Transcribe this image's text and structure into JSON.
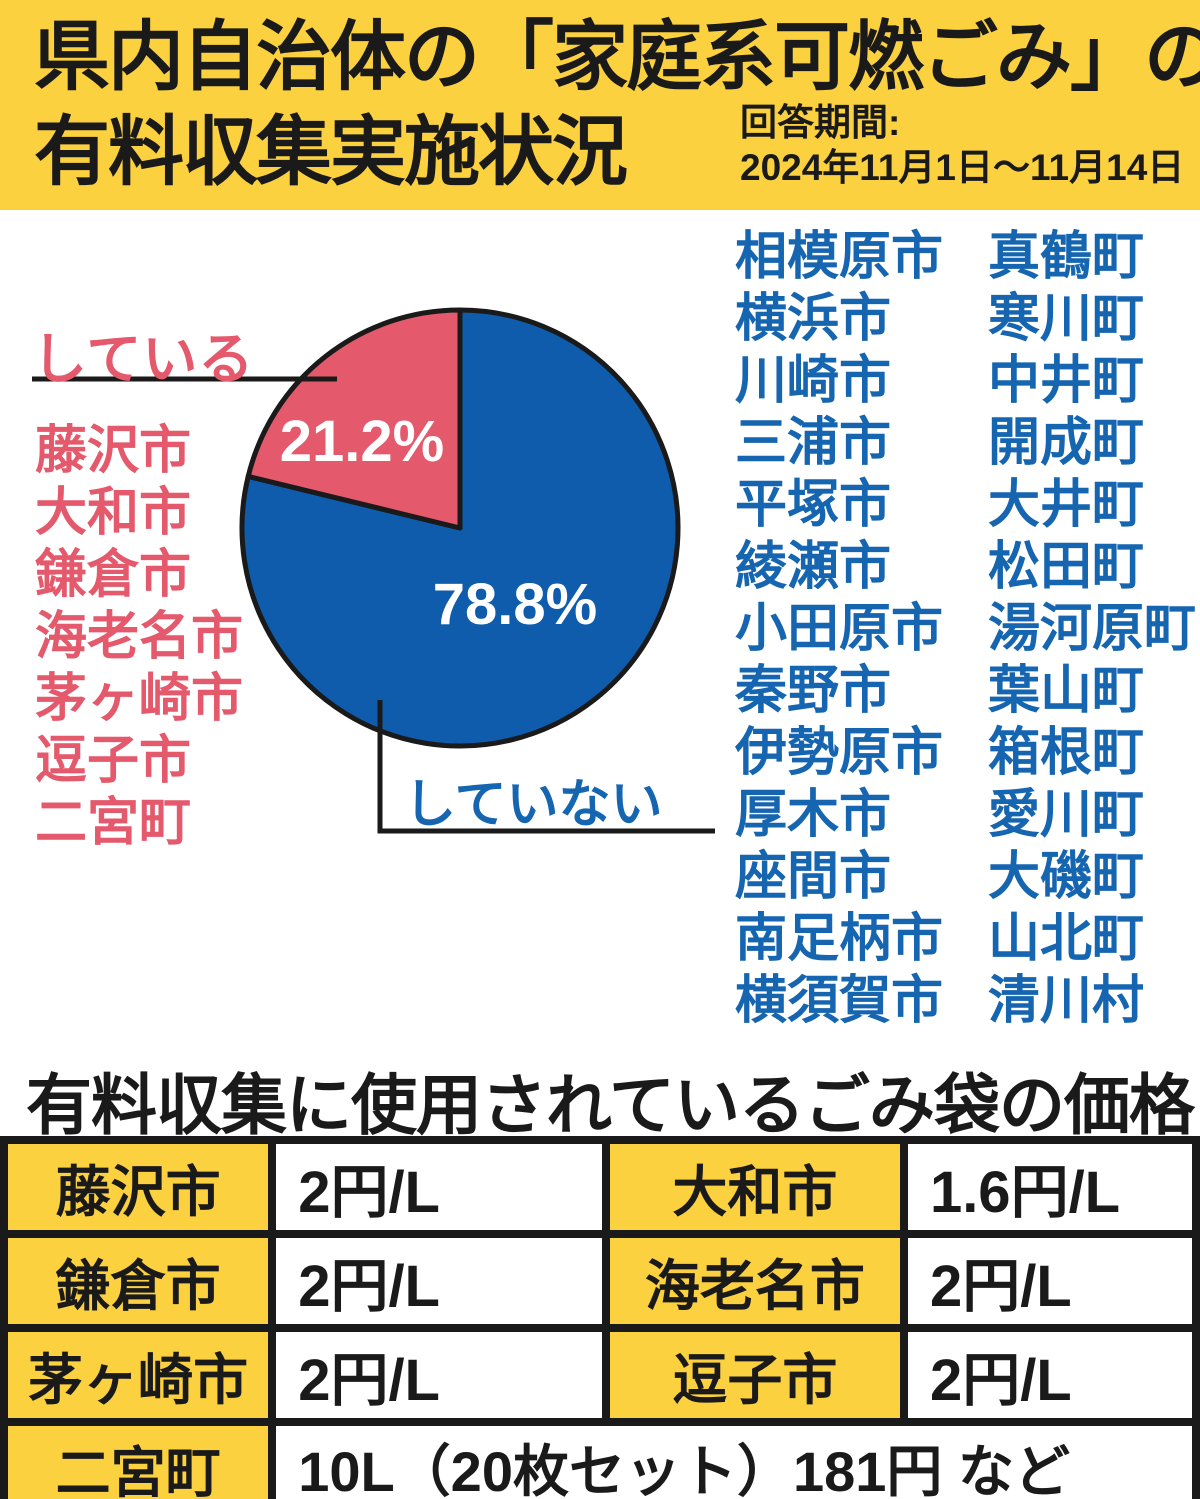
{
  "header": {
    "title_line1": "県内自治体の「家庭系可燃ごみ」の",
    "title_line2": "有料収集実施状況",
    "survey_label": "回答期間:",
    "survey_period": "2024年11月1日～11月14日"
  },
  "chart_data": {
    "type": "pie",
    "labels": [
      "している",
      "していない"
    ],
    "values": [
      21.2,
      78.8
    ],
    "value_labels": [
      "21.2%",
      "78.8%"
    ],
    "colors": [
      "#e4596b",
      "#0e5cab"
    ],
    "start_angle": "top",
    "first_slice_direction": "counterclockwise",
    "legend_position": "callout-labels"
  },
  "doing": {
    "label": "している",
    "items": [
      "藤沢市",
      "大和市",
      "鎌倉市",
      "海老名市",
      "茅ヶ崎市",
      "逗子市",
      "二宮町"
    ]
  },
  "not_doing": {
    "label": "していない",
    "cities": [
      "相模原市",
      "横浜市",
      "川崎市",
      "三浦市",
      "平塚市",
      "綾瀬市",
      "小田原市",
      "秦野市",
      "伊勢原市",
      "厚木市",
      "座間市",
      "南足柄市",
      "横須賀市"
    ],
    "towns": [
      "真鶴町",
      "寒川町",
      "中井町",
      "開成町",
      "大井町",
      "松田町",
      "湯河原町",
      "葉山町",
      "箱根町",
      "愛川町",
      "大磯町",
      "山北町",
      "清川村"
    ]
  },
  "price_table": {
    "title": "有料収集に使用されているごみ袋の価格",
    "rows": [
      {
        "name1": "藤沢市",
        "price1": "2円/L",
        "name2": "大和市",
        "price2": "1.6円/L"
      },
      {
        "name1": "鎌倉市",
        "price1": "2円/L",
        "name2": "海老名市",
        "price2": "2円/L"
      },
      {
        "name1": "茅ヶ崎市",
        "price1": "2円/L",
        "name2": "逗子市",
        "price2": "2円/L"
      }
    ],
    "footer_row": {
      "name": "二宮町",
      "price": "10L（20枚セット）181円 など"
    }
  },
  "colors": {
    "header_yellow": "#fcd13f",
    "pie_red": "#e4596b",
    "pie_blue": "#0e5cab",
    "blue_text": "#1565b0",
    "red_text": "#e4596b",
    "line_black": "#1a1a1a"
  }
}
